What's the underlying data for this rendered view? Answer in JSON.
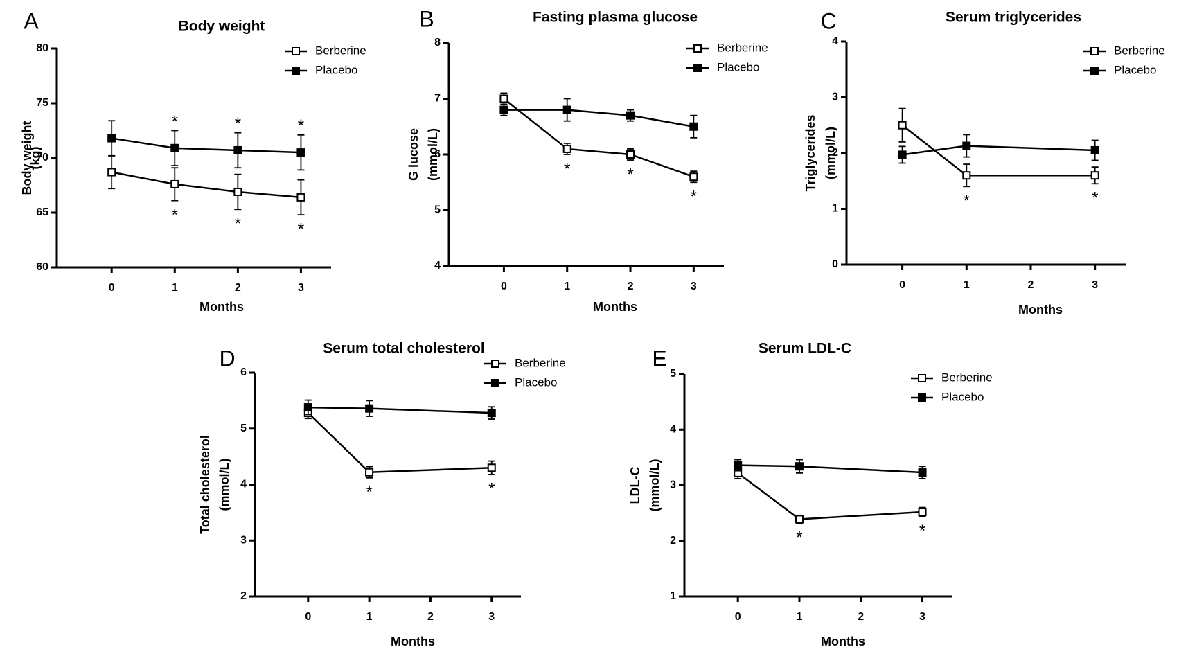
{
  "chart_data": [
    {
      "type": "line",
      "panel": "A",
      "title": "Body weight",
      "xlabel": "Months",
      "ylabel": [
        "Body weight",
        "(kg)"
      ],
      "x": [
        0,
        1,
        2,
        3
      ],
      "xticks": [
        "0",
        "1",
        "2",
        "3"
      ],
      "ylim": [
        60,
        80
      ],
      "yticks": [
        "60",
        "65",
        "70",
        "75",
        "80"
      ],
      "legend_placement": "top-right",
      "series": [
        {
          "name": "Berberine",
          "marker": "open-square",
          "values": [
            68.7,
            67.6,
            66.9,
            66.4
          ],
          "err": [
            1.5,
            1.5,
            1.6,
            1.6
          ],
          "sig": [
            false,
            true,
            true,
            true
          ]
        },
        {
          "name": "Placebo",
          "marker": "filled-square",
          "values": [
            71.8,
            70.9,
            70.7,
            70.5
          ],
          "err": [
            1.6,
            1.6,
            1.6,
            1.6
          ],
          "sig": [
            false,
            true,
            true,
            true
          ]
        }
      ],
      "significance_marker": "*"
    },
    {
      "type": "line",
      "panel": "B",
      "title": "Fasting plasma glucose",
      "xlabel": "Months",
      "ylabel": [
        "G lucose",
        "(mmol/L)"
      ],
      "x": [
        0,
        1,
        2,
        3
      ],
      "xticks": [
        "0",
        "1",
        "2",
        "3"
      ],
      "ylim": [
        4,
        8
      ],
      "yticks": [
        "4",
        "5",
        "6",
        "7",
        "8"
      ],
      "legend_placement": "top-right",
      "series": [
        {
          "name": "Berberine",
          "marker": "open-square",
          "values": [
            7.0,
            6.1,
            6.0,
            5.6
          ],
          "err": [
            0.1,
            0.1,
            0.1,
            0.1
          ],
          "sig": [
            false,
            true,
            true,
            true
          ]
        },
        {
          "name": "Placebo",
          "marker": "filled-square",
          "values": [
            6.8,
            6.8,
            6.7,
            6.5
          ],
          "err": [
            0.1,
            0.2,
            0.1,
            0.2
          ],
          "sig": [
            false,
            false,
            false,
            false
          ]
        }
      ],
      "significance_marker": "*"
    },
    {
      "type": "line",
      "panel": "C",
      "title": "Serum triglycerides",
      "xlabel": "Months",
      "ylabel": [
        "Triglycerides",
        "(mmol/L)"
      ],
      "x": [
        0,
        1,
        3
      ],
      "xticks": [
        "0",
        "1",
        "2",
        "3"
      ],
      "ylim": [
        0,
        4
      ],
      "yticks": [
        "0",
        "1",
        "2",
        "3",
        "4"
      ],
      "legend_placement": "top-right",
      "series": [
        {
          "name": "Berberine",
          "marker": "open-square",
          "values": [
            2.5,
            1.6,
            1.6
          ],
          "err": [
            0.3,
            0.2,
            0.15
          ],
          "sig": [
            false,
            true,
            true
          ]
        },
        {
          "name": "Placebo",
          "marker": "filled-square",
          "values": [
            1.97,
            2.13,
            2.05
          ],
          "err": [
            0.15,
            0.2,
            0.18
          ],
          "sig": [
            false,
            false,
            false
          ]
        }
      ],
      "significance_marker": "*"
    },
    {
      "type": "line",
      "panel": "D",
      "title": "Serum total cholesterol",
      "xlabel": "Months",
      "ylabel": [
        "Total cholesterol",
        "(mmol/L)"
      ],
      "x": [
        0,
        1,
        3
      ],
      "xticks": [
        "0",
        "1",
        "2",
        "3"
      ],
      "ylim": [
        2,
        6
      ],
      "yticks": [
        "2",
        "3",
        "4",
        "5",
        "6"
      ],
      "legend_placement": "top-right",
      "series": [
        {
          "name": "Berberine",
          "marker": "open-square",
          "values": [
            5.28,
            4.22,
            4.3
          ],
          "err": [
            0.1,
            0.1,
            0.12
          ],
          "sig": [
            false,
            true,
            true
          ]
        },
        {
          "name": "Placebo",
          "marker": "filled-square",
          "values": [
            5.38,
            5.36,
            5.28
          ],
          "err": [
            0.13,
            0.14,
            0.11
          ],
          "sig": [
            false,
            false,
            false
          ]
        }
      ],
      "significance_marker": "*"
    },
    {
      "type": "line",
      "panel": "E",
      "title": "Serum LDL-C",
      "xlabel": "Months",
      "ylabel": [
        "LDL-C",
        "(mmol/L)"
      ],
      "x": [
        0,
        1,
        3
      ],
      "xticks": [
        "0",
        "1",
        "2",
        "3"
      ],
      "ylim": [
        1,
        5
      ],
      "yticks": [
        "1",
        "2",
        "3",
        "4",
        "5"
      ],
      "legend_placement": "top-right",
      "series": [
        {
          "name": "Berberine",
          "marker": "open-square",
          "values": [
            3.22,
            2.39,
            2.52
          ],
          "err": [
            0.1,
            0.07,
            0.08
          ],
          "sig": [
            false,
            true,
            true
          ]
        },
        {
          "name": "Placebo",
          "marker": "filled-square",
          "values": [
            3.36,
            3.34,
            3.23
          ],
          "err": [
            0.1,
            0.12,
            0.11
          ],
          "sig": [
            false,
            false,
            false
          ]
        }
      ],
      "significance_marker": "*"
    }
  ]
}
